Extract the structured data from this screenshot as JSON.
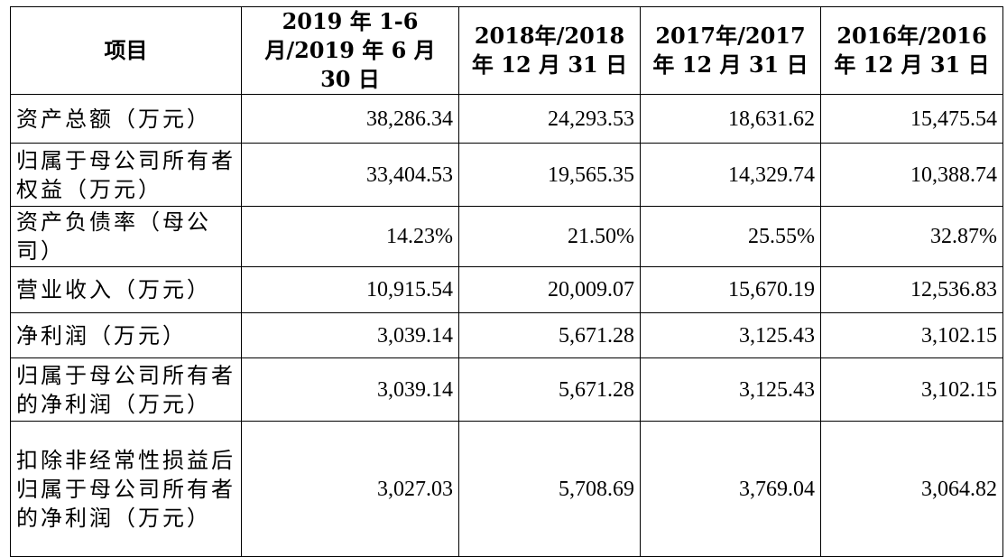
{
  "table": {
    "headers": [
      "项目",
      "2019 年 1-6 月/2019 年 6 月 30 日",
      "2018年/2018年 12 月 31 日",
      "2017年/2017年 12 月 31 日",
      "2016年/2016年 12 月 31 日"
    ],
    "rows": [
      {
        "label": "资产总额（万元）",
        "values": [
          "38,286.34",
          "24,293.53",
          "18,631.62",
          "15,475.54"
        ]
      },
      {
        "label": "归属于母公司所有者权益（万元）",
        "values": [
          "33,404.53",
          "19,565.35",
          "14,329.74",
          "10,388.74"
        ]
      },
      {
        "label": "资产负债率（母公司）",
        "values": [
          "14.23%",
          "21.50%",
          "25.55%",
          "32.87%"
        ]
      },
      {
        "label": "营业收入（万元）",
        "values": [
          "10,915.54",
          "20,009.07",
          "15,670.19",
          "12,536.83"
        ]
      },
      {
        "label": "净利润（万元）",
        "values": [
          "3,039.14",
          "5,671.28",
          "3,125.43",
          "3,102.15"
        ]
      },
      {
        "label": "归属于母公司所有者的净利润（万元）",
        "values": [
          "3,039.14",
          "5,671.28",
          "3,125.43",
          "3,102.15"
        ]
      },
      {
        "label": "扣除非经常性损益后归属于母公司所有者的净利润（万元）",
        "values": [
          "3,027.03",
          "5,708.69",
          "3,769.04",
          "3,064.82"
        ]
      }
    ]
  }
}
